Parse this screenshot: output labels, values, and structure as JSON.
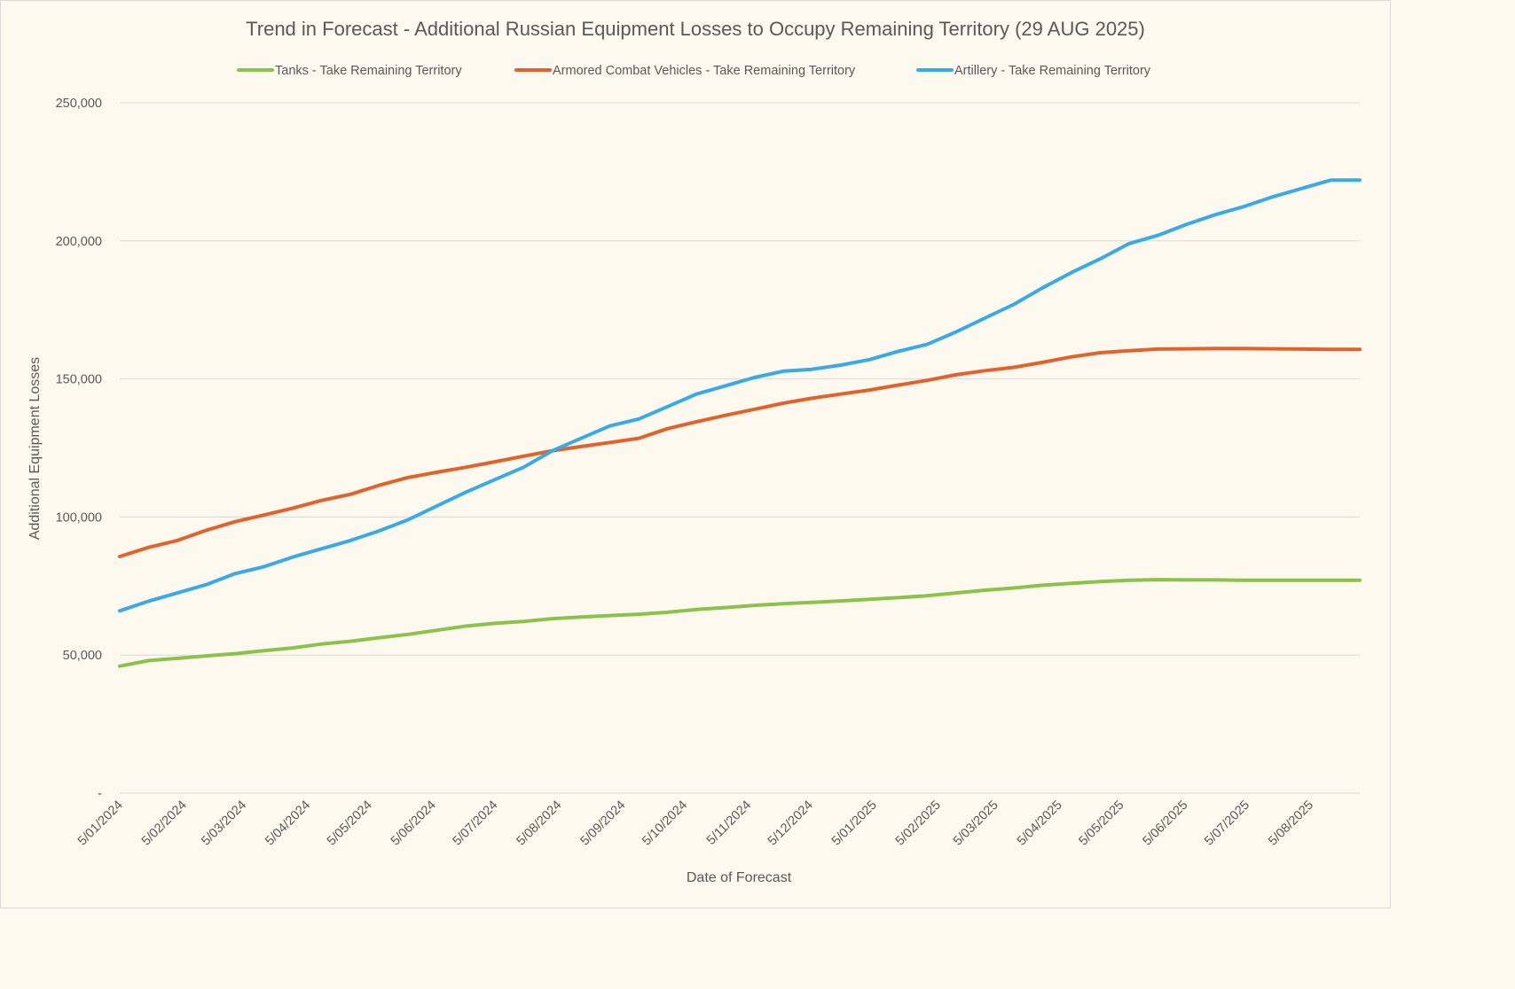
{
  "chart_data": {
    "type": "line",
    "title": "Trend in Forecast - Additional Russian Equipment Losses to Occupy Remaining Territory (29 AUG 2025)",
    "xlabel": "Date of Forecast",
    "ylabel": "Additional Equipment Losses",
    "ylim": [
      0,
      250000
    ],
    "yticks": [
      "-",
      "50,000",
      "100,000",
      "150,000",
      "200,000",
      "250,000"
    ],
    "xticks": [
      "5/01/2024",
      "5/02/2024",
      "5/03/2024",
      "5/04/2024",
      "5/05/2024",
      "5/06/2024",
      "5/07/2024",
      "5/08/2024",
      "5/09/2024",
      "5/10/2024",
      "5/11/2024",
      "5/12/2024",
      "5/01/2025",
      "5/02/2025",
      "5/03/2025",
      "5/04/2025",
      "5/05/2025",
      "5/06/2025",
      "5/07/2025",
      "5/08/2025"
    ],
    "grid": true,
    "legend_position": "top",
    "series": [
      {
        "name": "Tanks - Take Remaining Territory",
        "color": "#8bc34a",
        "points": [
          [
            "5/01/2024",
            46000
          ],
          [
            "19/01/2024",
            48000
          ],
          [
            "2/02/2024",
            48800
          ],
          [
            "16/02/2024",
            49700
          ],
          [
            "1/03/2024",
            50500
          ],
          [
            "15/03/2024",
            51600
          ],
          [
            "29/03/2024",
            52600
          ],
          [
            "12/04/2024",
            54000
          ],
          [
            "26/04/2024",
            55000
          ],
          [
            "10/05/2024",
            56300
          ],
          [
            "24/05/2024",
            57500
          ],
          [
            "7/06/2024",
            59000
          ],
          [
            "21/06/2024",
            60500
          ],
          [
            "5/07/2024",
            61500
          ],
          [
            "19/07/2024",
            62200
          ],
          [
            "2/08/2024",
            63200
          ],
          [
            "16/08/2024",
            63800
          ],
          [
            "30/08/2024",
            64300
          ],
          [
            "13/09/2024",
            64800
          ],
          [
            "27/09/2024",
            65500
          ],
          [
            "11/10/2024",
            66500
          ],
          [
            "25/10/2024",
            67200
          ],
          [
            "8/11/2024",
            68000
          ],
          [
            "22/11/2024",
            68600
          ],
          [
            "6/12/2024",
            69100
          ],
          [
            "20/12/2024",
            69600
          ],
          [
            "3/01/2025",
            70200
          ],
          [
            "17/01/2025",
            70800
          ],
          [
            "31/01/2025",
            71500
          ],
          [
            "14/02/2025",
            72500
          ],
          [
            "28/02/2025",
            73500
          ],
          [
            "14/03/2025",
            74300
          ],
          [
            "28/03/2025",
            75300
          ],
          [
            "11/04/2025",
            76000
          ],
          [
            "25/04/2025",
            76600
          ],
          [
            "9/05/2025",
            77100
          ],
          [
            "23/05/2025",
            77300
          ],
          [
            "6/06/2025",
            77200
          ],
          [
            "20/06/2025",
            77200
          ],
          [
            "4/07/2025",
            77100
          ],
          [
            "18/07/2025",
            77100
          ],
          [
            "1/08/2025",
            77100
          ],
          [
            "15/08/2025",
            77100
          ],
          [
            "29/08/2025",
            77100
          ]
        ]
      },
      {
        "name": "Armored Combat Vehicles - Take Remaining Territory",
        "color": "#e2622c",
        "points": [
          [
            "5/01/2024",
            85700
          ],
          [
            "19/01/2024",
            89000
          ],
          [
            "2/02/2024",
            91500
          ],
          [
            "16/02/2024",
            95200
          ],
          [
            "1/03/2024",
            98300
          ],
          [
            "15/03/2024",
            100700
          ],
          [
            "29/03/2024",
            103200
          ],
          [
            "12/04/2024",
            106000
          ],
          [
            "26/04/2024",
            108200
          ],
          [
            "10/05/2024",
            111500
          ],
          [
            "24/05/2024",
            114300
          ],
          [
            "7/06/2024",
            116200
          ],
          [
            "21/06/2024",
            118000
          ],
          [
            "5/07/2024",
            120000
          ],
          [
            "19/07/2024",
            122000
          ],
          [
            "2/08/2024",
            124000
          ],
          [
            "16/08/2024",
            125500
          ],
          [
            "30/08/2024",
            127000
          ],
          [
            "13/09/2024",
            128500
          ],
          [
            "27/09/2024",
            132000
          ],
          [
            "11/10/2024",
            134500
          ],
          [
            "25/10/2024",
            136800
          ],
          [
            "8/11/2024",
            139000
          ],
          [
            "22/11/2024",
            141200
          ],
          [
            "6/12/2024",
            143000
          ],
          [
            "20/12/2024",
            144500
          ],
          [
            "3/01/2025",
            146000
          ],
          [
            "17/01/2025",
            147800
          ],
          [
            "31/01/2025",
            149500
          ],
          [
            "14/02/2025",
            151500
          ],
          [
            "28/02/2025",
            153000
          ],
          [
            "14/03/2025",
            154200
          ],
          [
            "28/03/2025",
            156000
          ],
          [
            "11/04/2025",
            158000
          ],
          [
            "25/04/2025",
            159500
          ],
          [
            "9/05/2025",
            160200
          ],
          [
            "23/05/2025",
            160800
          ],
          [
            "6/06/2025",
            160900
          ],
          [
            "20/06/2025",
            161000
          ],
          [
            "4/07/2025",
            161000
          ],
          [
            "18/07/2025",
            160900
          ],
          [
            "1/08/2025",
            160800
          ],
          [
            "15/08/2025",
            160700
          ],
          [
            "29/08/2025",
            160700
          ]
        ]
      },
      {
        "name": "Artillery - Take Remaining Territory",
        "color": "#3aa9e8",
        "points": [
          [
            "5/01/2024",
            66000
          ],
          [
            "19/01/2024",
            69500
          ],
          [
            "2/02/2024",
            72500
          ],
          [
            "16/02/2024",
            75500
          ],
          [
            "1/03/2024",
            79500
          ],
          [
            "15/03/2024",
            82000
          ],
          [
            "29/03/2024",
            85500
          ],
          [
            "12/04/2024",
            88500
          ],
          [
            "26/04/2024",
            91500
          ],
          [
            "10/05/2024",
            95000
          ],
          [
            "24/05/2024",
            99000
          ],
          [
            "7/06/2024",
            104000
          ],
          [
            "21/06/2024",
            109000
          ],
          [
            "5/07/2024",
            113500
          ],
          [
            "19/07/2024",
            118000
          ],
          [
            "2/08/2024",
            124000
          ],
          [
            "16/08/2024",
            128500
          ],
          [
            "30/08/2024",
            133000
          ],
          [
            "13/09/2024",
            135500
          ],
          [
            "27/09/2024",
            140000
          ],
          [
            "11/10/2024",
            144500
          ],
          [
            "25/10/2024",
            147500
          ],
          [
            "8/11/2024",
            150500
          ],
          [
            "22/11/2024",
            152800
          ],
          [
            "6/12/2024",
            153500
          ],
          [
            "20/12/2024",
            155000
          ],
          [
            "3/01/2025",
            157000
          ],
          [
            "17/01/2025",
            160000
          ],
          [
            "31/01/2025",
            162500
          ],
          [
            "14/02/2025",
            167000
          ],
          [
            "28/02/2025",
            172000
          ],
          [
            "14/03/2025",
            177000
          ],
          [
            "28/03/2025",
            183000
          ],
          [
            "11/04/2025",
            188500
          ],
          [
            "25/04/2025",
            193500
          ],
          [
            "9/05/2025",
            199000
          ],
          [
            "23/05/2025",
            202000
          ],
          [
            "6/06/2025",
            206000
          ],
          [
            "20/06/2025",
            209500
          ],
          [
            "4/07/2025",
            212500
          ],
          [
            "18/07/2025",
            216000
          ],
          [
            "1/08/2025",
            219000
          ],
          [
            "15/08/2025",
            222000
          ],
          [
            "29/08/2025",
            222000
          ]
        ]
      }
    ]
  }
}
